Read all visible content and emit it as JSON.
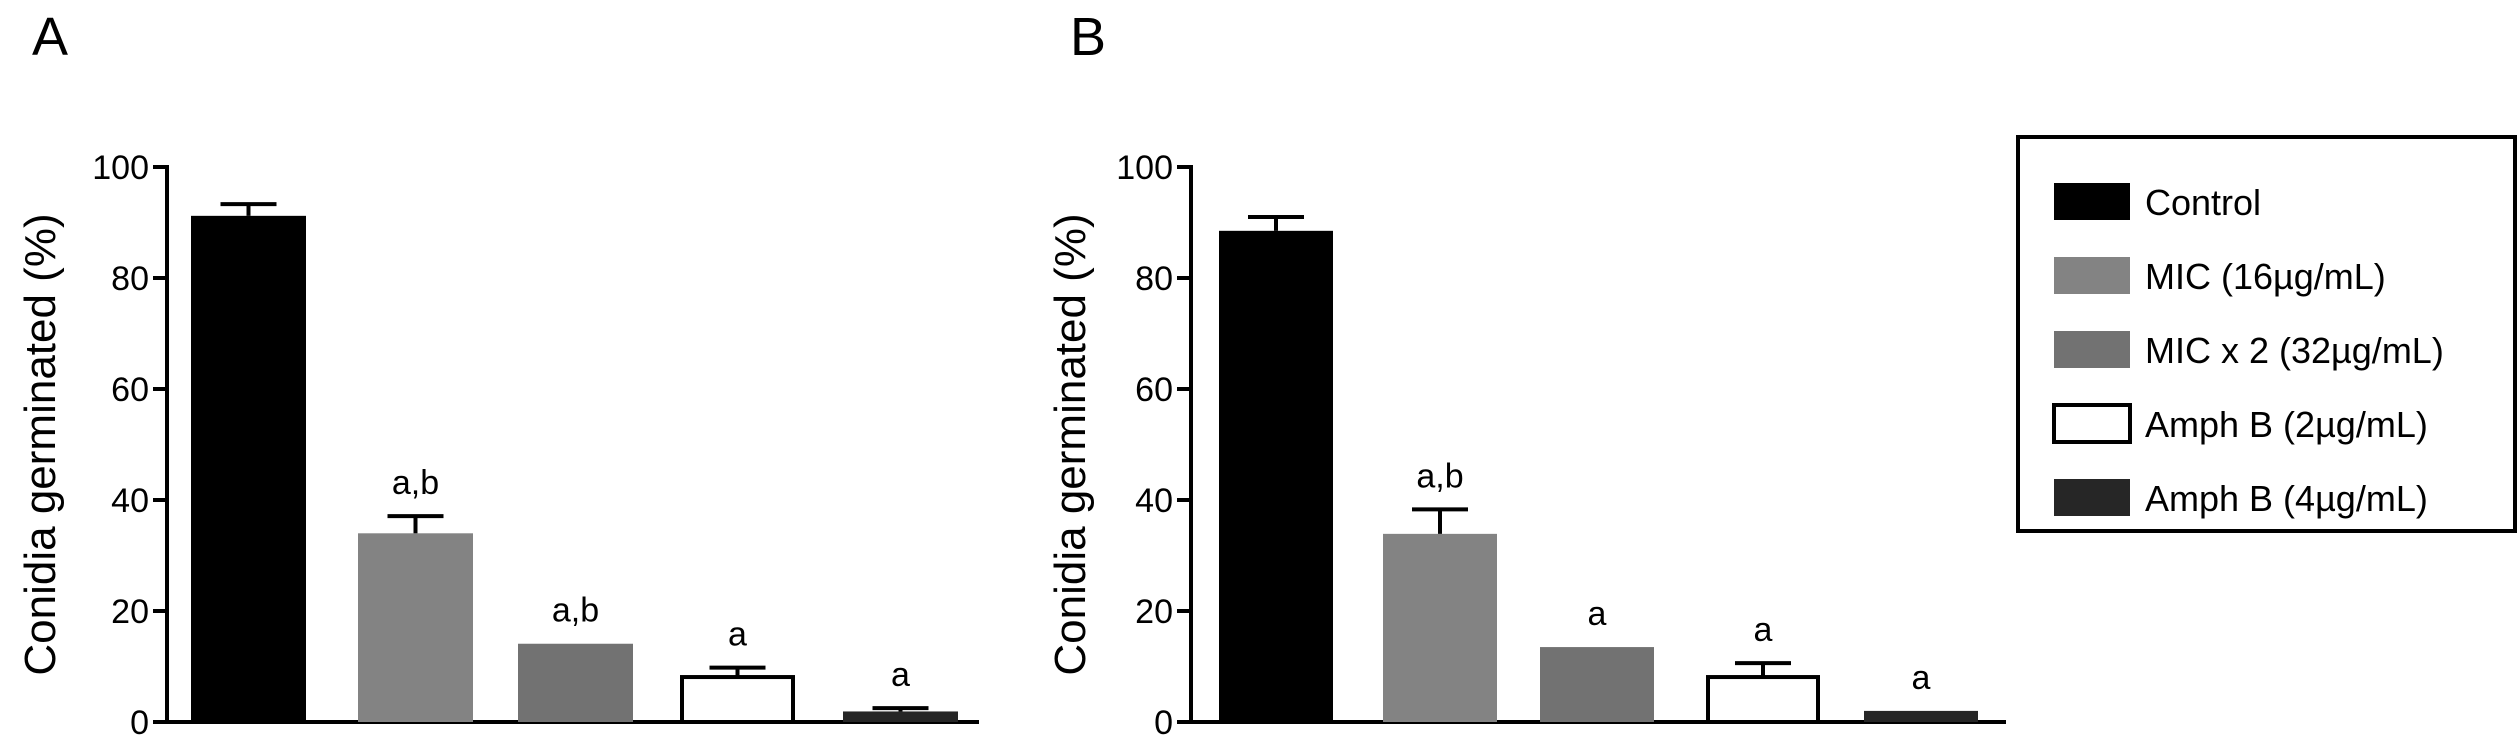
{
  "chart_data": [
    {
      "type": "bar",
      "panel_label": "A",
      "ylabel": "Conidia germinated (%)",
      "xlabel": "",
      "ylim": [
        0,
        100
      ],
      "yticks": [
        "0",
        "20",
        "40",
        "60",
        "80",
        "100"
      ],
      "grid": false,
      "categories": [
        "Control",
        "MIC (16µg/mL)",
        "MIC x 2 (32µg/mL)",
        "Amph B (2µg/mL)",
        "Amph B (4µg/mL)"
      ],
      "values": [
        91.2,
        34.0,
        14.1,
        8.1,
        1.9
      ],
      "error_upper": [
        93.3,
        37.1,
        14.1,
        9.8,
        2.5
      ],
      "annotations": [
        "",
        "a,b",
        "a,b",
        "a",
        "a"
      ]
    },
    {
      "type": "bar",
      "panel_label": "B",
      "ylabel": "Conidia germinated (%)",
      "xlabel": "",
      "ylim": [
        0,
        100
      ],
      "yticks": [
        "0",
        "20",
        "40",
        "60",
        "80",
        "100"
      ],
      "grid": false,
      "categories": [
        "Control",
        "MIC (16µg/mL)",
        "MIC x 2 (32µg/mL)",
        "Amph B (2µg/mL)",
        "Amph B (4µg/mL)"
      ],
      "values": [
        88.5,
        33.9,
        13.5,
        8.1,
        2.0
      ],
      "error_upper": [
        91.0,
        38.3,
        13.5,
        10.6,
        2.0
      ],
      "annotations": [
        "",
        "a,b",
        "a",
        "a",
        "a"
      ]
    }
  ],
  "legend": {
    "placement": "right",
    "entries": [
      {
        "label": "Control",
        "fill": "#000000",
        "stroke": "#000000"
      },
      {
        "label": "MIC (16µg/mL)",
        "fill": "#838383",
        "stroke": "#838383"
      },
      {
        "label": "MIC x 2 (32µg/mL)",
        "fill": "#727272",
        "stroke": "#727272"
      },
      {
        "label": "Amph B (2µg/mL)",
        "fill": "#ffffff",
        "stroke": "#000000"
      },
      {
        "label": "Amph B (4µg/mL)",
        "fill": "#262626",
        "stroke": "#262626"
      }
    ]
  }
}
